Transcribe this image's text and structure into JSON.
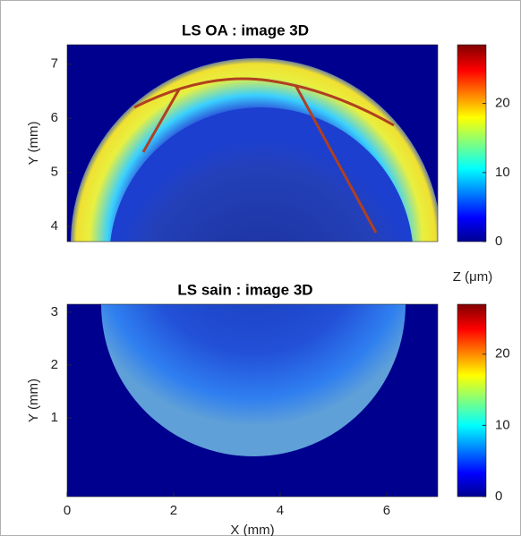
{
  "chart_data": [
    {
      "type": "heatmap",
      "title": "LS OA : image 3D",
      "ylabel": "Y (mm)",
      "xlim": [
        0,
        6.96
      ],
      "ylim": [
        3.72,
        7.36
      ],
      "yticks": [
        4,
        5,
        6,
        7
      ],
      "colorbar": {
        "colormap": "jet",
        "lim": [
          0,
          28.5
        ],
        "ticks": [
          0,
          10,
          20
        ]
      }
    },
    {
      "type": "heatmap",
      "title": "LS sain : image 3D",
      "ylabel": "Y (mm)",
      "xlabel": "X (mm)",
      "xlim": [
        0,
        6.96
      ],
      "ylim": [
        -0.49,
        3.15
      ],
      "xticks": [
        0,
        2,
        4,
        6
      ],
      "yticks": [
        1,
        2,
        3
      ],
      "colorbar": {
        "colormap": "jet",
        "label": "Z (μm)",
        "lim": [
          0,
          27
        ],
        "ticks": [
          0,
          10,
          20
        ]
      }
    }
  ]
}
